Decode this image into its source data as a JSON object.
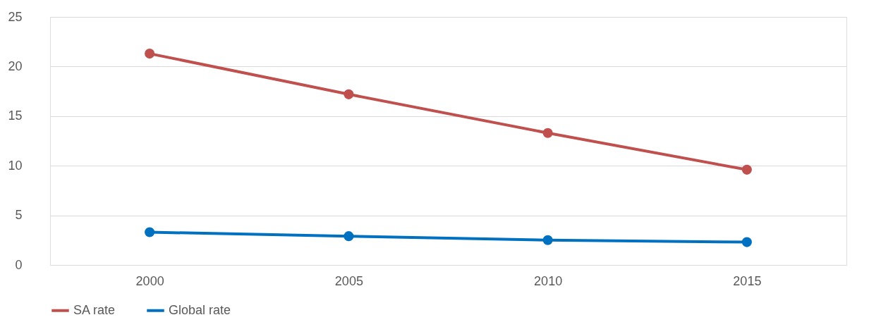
{
  "chart_data": {
    "type": "line",
    "categories": [
      "2000",
      "2005",
      "2010",
      "2015"
    ],
    "series": [
      {
        "name": "SA  rate",
        "color": "#c0504d",
        "values": [
          21.3,
          17.2,
          13.3,
          9.6
        ]
      },
      {
        "name": "Global  rate",
        "color": "#0070c0",
        "values": [
          3.3,
          2.9,
          2.5,
          2.3
        ]
      }
    ],
    "ylim": [
      0,
      25
    ],
    "yticks": [
      0,
      5,
      10,
      15,
      20,
      25
    ],
    "grid": "y",
    "legend": "bottom",
    "marker": "circle",
    "line_style": "solid"
  }
}
